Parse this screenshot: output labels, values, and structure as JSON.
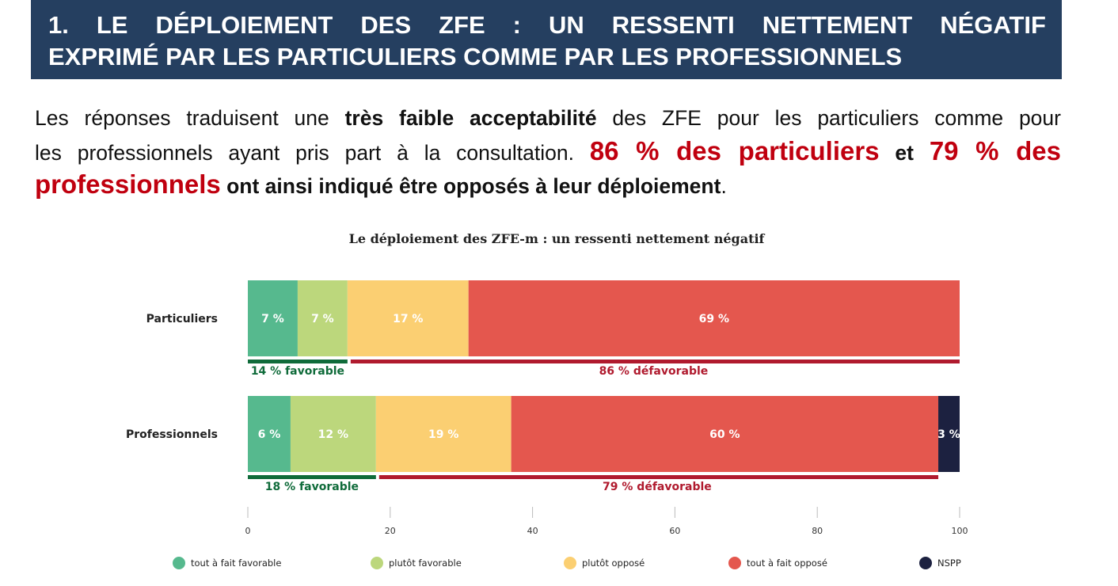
{
  "header": {
    "line1": "1. LE DÉPLOIEMENT DES ZFE : UN RESSENTI NETTEMENT NÉGATIF",
    "line2": "EXPRIMÉ PAR LES PARTICULIERS COMME PAR LES PROFESSIONNELS"
  },
  "paragraph": {
    "l1a": "Les réponses traduisent une ",
    "l1b": "très faible acceptabilité",
    "l1c": " des ZFE pour les particuliers comme pour",
    "l2a": "les professionnels ayant pris part à la consultation. ",
    "l2b": "86 % des particuliers",
    "l2c": " et ",
    "l2d": "79 % des",
    "l3a": "professionnels",
    "l3b": " ont ainsi indiqué être opposés à leur déploiement",
    "l3c": "."
  },
  "colors": {
    "header_bg": "#253f60",
    "highlight_red": "#c0000f",
    "favorable_bracket": "#0f6b3a",
    "defavorable_bracket": "#b01a2e"
  },
  "chart_data": {
    "type": "bar",
    "orientation": "horizontal-stacked",
    "title": "Le déploiement des ZFE-m : un ressenti nettement négatif",
    "categories": [
      "Particuliers",
      "Professionnels"
    ],
    "series": [
      {
        "name": "tout à fait favorable",
        "color": "#56b98e",
        "values": [
          7,
          6
        ],
        "labels": [
          "7 %",
          "6 %"
        ]
      },
      {
        "name": "plutôt favorable",
        "color": "#bcd77c",
        "values": [
          7,
          12
        ],
        "labels": [
          "7 %",
          "12 %"
        ]
      },
      {
        "name": "plutôt opposé",
        "color": "#fbcf72",
        "values": [
          17,
          19
        ],
        "labels": [
          "17 %",
          "19 %"
        ]
      },
      {
        "name": "tout à fait opposé",
        "color": "#e4574e",
        "values": [
          69,
          60
        ],
        "labels": [
          "69 %",
          "60 %"
        ]
      },
      {
        "name": "NSPP",
        "color": "#1c2140",
        "values": [
          0,
          3
        ],
        "labels": [
          "",
          "3 %"
        ]
      }
    ],
    "groups": [
      {
        "favorable": "14 % favorable",
        "defavorable": "86 % défavorable"
      },
      {
        "favorable": "18 %  favorable",
        "defavorable": "79 % défavorable"
      }
    ],
    "xticks": [
      "0",
      "20",
      "40",
      "60",
      "80",
      "100"
    ],
    "xlim": [
      0,
      100
    ],
    "grid": false,
    "legend_position": "bottom"
  }
}
